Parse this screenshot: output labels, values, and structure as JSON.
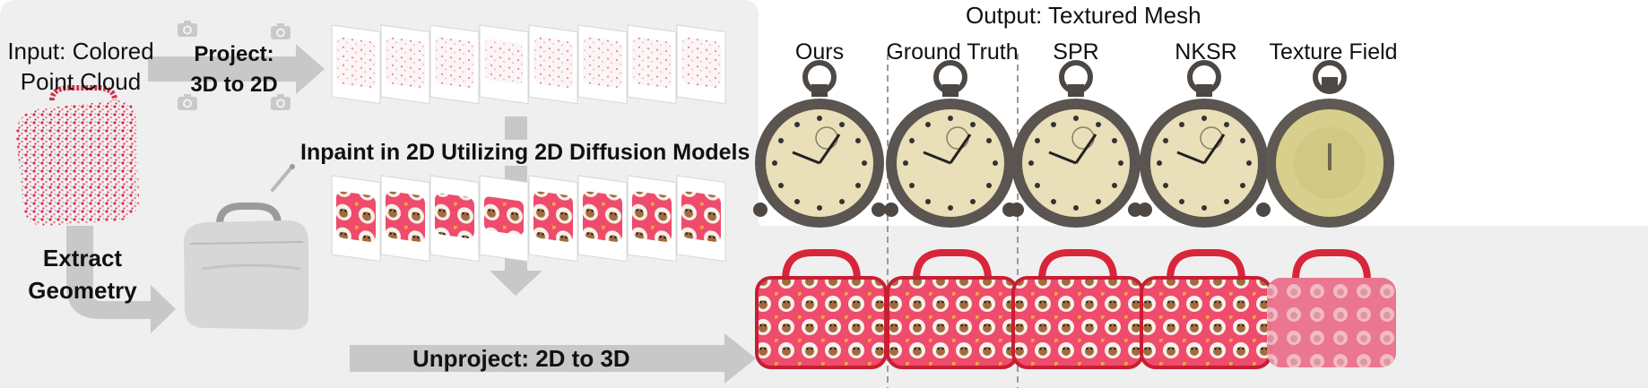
{
  "input_label": [
    "Input: Colored",
    "Point Cloud"
  ],
  "project_label": [
    "Project:",
    "3D to 2D"
  ],
  "inpaint_label": "Inpaint in 2D Utilizing 2D Diffusion Models",
  "extract_label": [
    "Extract",
    "Geometry"
  ],
  "unproject_label": "Unproject: 2D to 3D",
  "output": {
    "title": "Output: Textured Mesh",
    "columns": [
      "Ours",
      "Ground Truth",
      "SPR",
      "NKSR",
      "Texture Field"
    ]
  },
  "colors": {
    "panel": "#efefef",
    "arrow": "#c8c8c8",
    "bag_red": "#e8384f",
    "bag_pink": "#f06a8a",
    "clock_metal": "#5a5550",
    "clock_face": "#e9dfb8"
  },
  "icons": [
    "camera-icon",
    "brush-icon"
  ]
}
